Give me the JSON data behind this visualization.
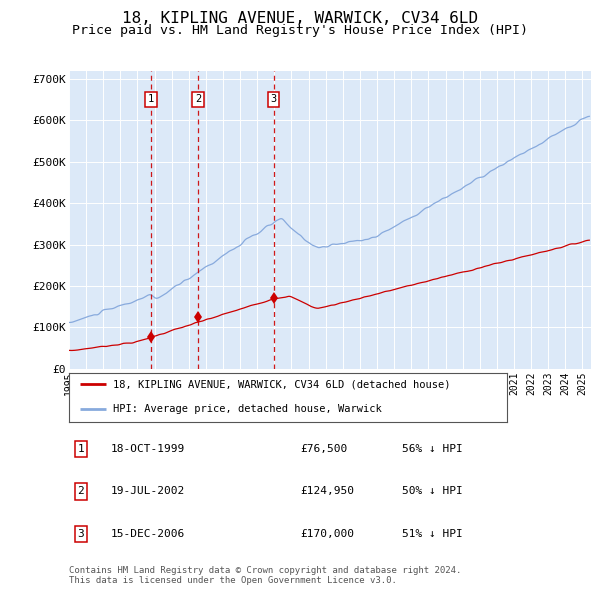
{
  "title": "18, KIPLING AVENUE, WARWICK, CV34 6LD",
  "subtitle": "Price paid vs. HM Land Registry's House Price Index (HPI)",
  "title_fontsize": 11.5,
  "subtitle_fontsize": 9.5,
  "xlim_start": 1995.0,
  "xlim_end": 2025.5,
  "ylim_min": 0,
  "ylim_max": 720000,
  "yticks": [
    0,
    100000,
    200000,
    300000,
    400000,
    500000,
    600000,
    700000
  ],
  "ytick_labels": [
    "£0",
    "£100K",
    "£200K",
    "£300K",
    "£400K",
    "£500K",
    "£600K",
    "£700K"
  ],
  "background_color": "#dce9f8",
  "grid_color": "#ffffff",
  "red_line_color": "#cc0000",
  "blue_line_color": "#88aadd",
  "dashed_line_color": "#cc0000",
  "sale_markers": [
    {
      "year": 1999.79,
      "price": 76500,
      "label": "1"
    },
    {
      "year": 2002.54,
      "price": 124950,
      "label": "2"
    },
    {
      "year": 2006.96,
      "price": 170000,
      "label": "3"
    }
  ],
  "legend_entries": [
    {
      "label": "18, KIPLING AVENUE, WARWICK, CV34 6LD (detached house)",
      "color": "#cc0000"
    },
    {
      "label": "HPI: Average price, detached house, Warwick",
      "color": "#88aadd"
    }
  ],
  "table_rows": [
    {
      "num": "1",
      "date": "18-OCT-1999",
      "price": "£76,500",
      "hpi": "56% ↓ HPI"
    },
    {
      "num": "2",
      "date": "19-JUL-2002",
      "price": "£124,950",
      "hpi": "50% ↓ HPI"
    },
    {
      "num": "3",
      "date": "15-DEC-2006",
      "price": "£170,000",
      "hpi": "51% ↓ HPI"
    }
  ],
  "footnote": "Contains HM Land Registry data © Crown copyright and database right 2024.\nThis data is licensed under the Open Government Licence v3.0.",
  "xtick_years": [
    1995,
    1996,
    1997,
    1998,
    1999,
    2000,
    2001,
    2002,
    2003,
    2004,
    2005,
    2006,
    2007,
    2008,
    2009,
    2010,
    2011,
    2012,
    2013,
    2014,
    2015,
    2016,
    2017,
    2018,
    2019,
    2020,
    2021,
    2022,
    2023,
    2024,
    2025
  ]
}
